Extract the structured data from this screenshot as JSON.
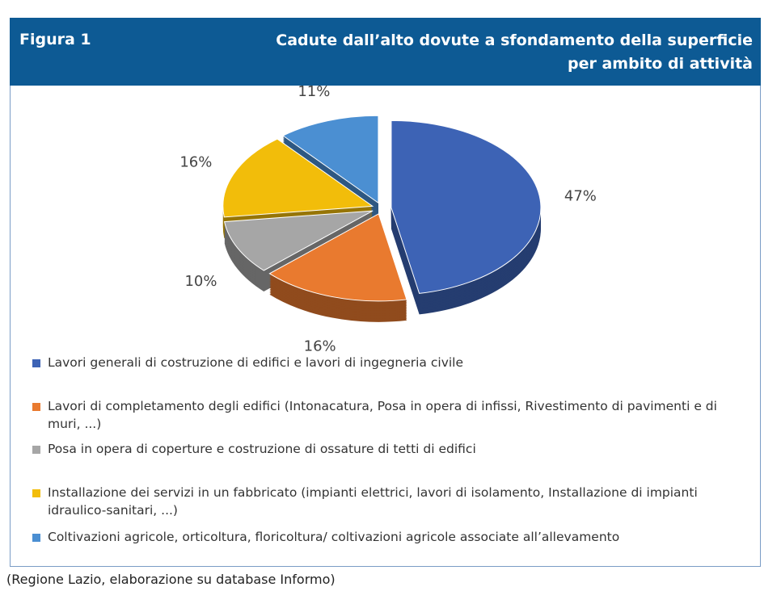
{
  "chart_data": {
    "type": "pie",
    "figure_label": "Figura 1",
    "title_lines": [
      "Cadute dall’alto dovute a sfondamento della superficie",
      "per ambito di attività"
    ],
    "categories": [
      "Lavori generali di costruzione di edifici e lavori di ingegneria civile",
      "Lavori di completamento degli edifici (Intonacatura, Posa in opera di infissi, Rivestimento di pavimenti e di muri, ...)",
      "Posa in opera di coperture e costruzione di ossature di tetti di edifici",
      "Installazione dei servizi in un fabbricato (impianti elettrici, lavori di isolamento, Installazione di impianti idraulico-sanitari, ...)",
      "Coltivazioni agricole, orticoltura, floricoltura/ coltivazioni agricole associate all’allevamento"
    ],
    "values": [
      47,
      16,
      10,
      16,
      11
    ],
    "value_labels": [
      "47%",
      "16%",
      "10%",
      "16%",
      "11%"
    ],
    "colors": [
      "#3d63b5",
      "#e97a2f",
      "#a6a6a6",
      "#f2bd0a",
      "#4b8fd2"
    ],
    "source": "(Regione Lazio, elaborazione su database Informo)"
  }
}
